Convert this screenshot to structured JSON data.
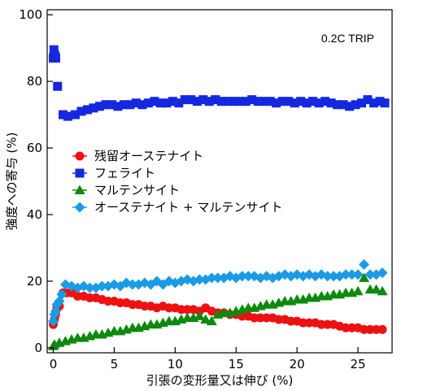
{
  "chart_data": {
    "type": "scatter",
    "title": "",
    "annotation": "0.2C TRIP",
    "xlabel": "引張の変形量又は伸び (%)",
    "ylabel": "強度への寄与 (%)",
    "xlim": [
      -0.5,
      27.8
    ],
    "ylim": [
      -1.5,
      101.5
    ],
    "xticks": [
      0,
      5,
      10,
      15,
      20,
      25
    ],
    "yticks": [
      0,
      20,
      40,
      60,
      80,
      100
    ],
    "xtick_labels": [
      "0",
      "5",
      "10",
      "15",
      "20",
      "25"
    ],
    "ytick_labels": [
      "0",
      "20",
      "40",
      "60",
      "80",
      "100"
    ],
    "grid": false,
    "legend_position": "center-left",
    "series": [
      {
        "name": "残留オーステナイト",
        "marker": "circle",
        "color": "#ee1111",
        "x": [
          0,
          0.1,
          0.2,
          0.3,
          0.5,
          0.8,
          1.1,
          1.5,
          2.0,
          2.5,
          3.0,
          3.5,
          4.0,
          4.5,
          5.0,
          5.5,
          6.0,
          6.5,
          7.0,
          7.5,
          8.0,
          8.5,
          9.0,
          9.5,
          10.0,
          10.5,
          11.0,
          11.5,
          12.0,
          12.5,
          13.0,
          13.5,
          14.0,
          14.5,
          15.0,
          15.5,
          16.0,
          16.5,
          17.0,
          17.5,
          18.0,
          18.5,
          19.0,
          19.5,
          20.0,
          20.5,
          21.0,
          21.5,
          22.0,
          22.5,
          23.0,
          23.5,
          24.0,
          24.5,
          25.0,
          25.5,
          26.0,
          26.5,
          27.0
        ],
        "y": [
          7,
          8.5,
          10,
          12,
          12.5,
          16.5,
          16.5,
          16.5,
          15.5,
          15.5,
          15,
          15,
          14.5,
          14,
          14,
          13.5,
          13.5,
          13,
          13,
          12.5,
          12.5,
          12,
          12.5,
          12,
          12,
          11.5,
          11.5,
          11.5,
          11,
          12,
          11,
          10.5,
          10.5,
          10,
          10,
          9.5,
          9.5,
          9,
          9,
          9,
          9,
          8.5,
          8.5,
          8,
          8,
          7.5,
          7.5,
          7.5,
          7,
          7,
          7,
          6.5,
          6,
          6,
          6,
          5.5,
          5.5,
          5.5,
          5.5
        ]
      },
      {
        "name": "フェライト",
        "marker": "square",
        "color": "#1428e0",
        "x": [
          0,
          0.05,
          0.1,
          0.15,
          0.2,
          0.35,
          0.8,
          1.2,
          1.8,
          2.3,
          2.8,
          3.3,
          3.8,
          4.3,
          4.8,
          5.3,
          5.8,
          6.3,
          6.8,
          7.3,
          7.8,
          8.3,
          8.8,
          9.3,
          9.8,
          10.3,
          10.8,
          11.3,
          11.8,
          12.3,
          12.8,
          13.3,
          13.8,
          14.3,
          14.8,
          15.3,
          15.8,
          16.3,
          16.8,
          17.3,
          17.8,
          18.3,
          18.8,
          19.3,
          19.8,
          20.3,
          20.8,
          21.3,
          21.8,
          22.3,
          22.8,
          23.3,
          23.8,
          24.3,
          24.8,
          25.3,
          25.8,
          26.3,
          26.8,
          27.2
        ],
        "y": [
          87,
          89.5,
          88,
          87.5,
          87,
          78.5,
          70,
          69.5,
          70,
          71,
          71.5,
          72,
          72.5,
          73,
          73,
          72.5,
          73,
          73,
          73.5,
          73,
          73.5,
          74,
          73.5,
          73.5,
          74,
          73.5,
          74.5,
          74.5,
          74,
          74.5,
          74,
          74.5,
          74,
          74,
          74,
          74,
          74,
          74.5,
          74,
          74,
          74,
          73.5,
          74,
          74,
          73.5,
          74,
          73.5,
          74,
          73.5,
          74,
          73.5,
          73,
          73,
          72.5,
          73,
          73.5,
          74.5,
          73.5,
          74,
          73.5
        ]
      },
      {
        "name": "マルテンサイト",
        "marker": "triangle",
        "color": "#0d8a0d",
        "x": [
          0,
          0.1,
          0.5,
          1.0,
          1.5,
          2.0,
          2.5,
          3.0,
          3.5,
          4.0,
          4.5,
          5.0,
          5.5,
          6.0,
          6.5,
          7.0,
          7.5,
          8.0,
          8.5,
          9.0,
          9.5,
          10.0,
          10.5,
          11.0,
          11.5,
          12.0,
          12.5,
          13.0,
          13.5,
          14.0,
          14.5,
          15.0,
          15.5,
          16.0,
          16.5,
          17.0,
          17.5,
          18.0,
          18.5,
          19.0,
          19.5,
          20.0,
          20.5,
          21.0,
          21.5,
          22.0,
          22.5,
          23.0,
          23.5,
          24.0,
          24.5,
          25.0,
          25.5,
          26.0,
          26.5,
          27.0
        ],
        "y": [
          0.5,
          1,
          1.5,
          2,
          2.5,
          3,
          3,
          3.5,
          4,
          4,
          4.5,
          5,
          5,
          5.5,
          6,
          6,
          6.5,
          7,
          7,
          7.5,
          8,
          8,
          8.5,
          9,
          9,
          9.5,
          8.5,
          8,
          10,
          10.5,
          10.5,
          11,
          11.5,
          12,
          12,
          12.5,
          13,
          13,
          13.5,
          14,
          14,
          14.5,
          14.5,
          15,
          15,
          15.5,
          15.5,
          16,
          16,
          16.5,
          16.5,
          17,
          21,
          17.5,
          17.5,
          17
        ]
      },
      {
        "name": "オーステナイト + マルテンサイト",
        "marker": "diamond",
        "color": "#1a9be6",
        "x": [
          0,
          0.1,
          0.2,
          0.3,
          0.5,
          0.7,
          1.0,
          1.5,
          2.0,
          2.5,
          3.0,
          3.5,
          4.0,
          4.5,
          5.0,
          5.5,
          6.0,
          6.5,
          7.0,
          7.5,
          8.0,
          8.5,
          9.0,
          9.5,
          10.0,
          10.5,
          11.0,
          11.5,
          12.0,
          12.5,
          13.0,
          13.5,
          14.0,
          14.5,
          15.0,
          15.5,
          16.0,
          16.5,
          17.0,
          17.5,
          18.0,
          18.5,
          19.0,
          19.5,
          20.0,
          20.5,
          21.0,
          21.5,
          22.0,
          22.5,
          23.0,
          23.5,
          24.0,
          24.5,
          25.0,
          25.5,
          26.0,
          26.5,
          27.0
        ],
        "y": [
          8,
          10,
          11,
          13,
          14,
          16,
          19,
          18.5,
          18,
          18.5,
          18,
          18,
          18.5,
          18.5,
          19,
          18.5,
          19.5,
          19,
          19,
          19.5,
          19,
          20,
          19,
          20,
          19.5,
          20,
          20.5,
          20,
          20.5,
          20.5,
          21,
          21,
          21,
          21.5,
          21,
          21.5,
          21.5,
          21.5,
          21,
          21.5,
          21,
          21.5,
          22,
          21.5,
          22,
          21.5,
          22,
          21.5,
          22,
          21.5,
          21.5,
          21.5,
          22,
          22,
          22,
          25,
          22,
          22,
          22.5
        ]
      }
    ]
  }
}
